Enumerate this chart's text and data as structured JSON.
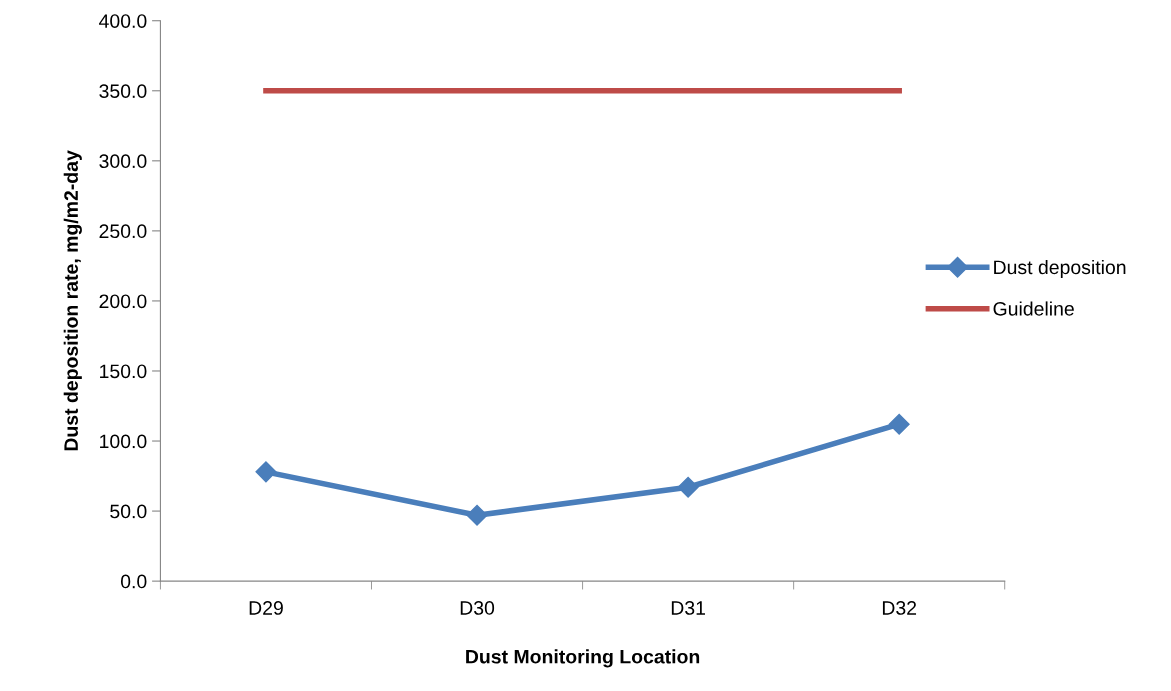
{
  "chart_data": {
    "type": "line",
    "xlabel": "Dust Monitoring Location",
    "ylabel": "Dust deposition rate, mg/m2-day",
    "categories": [
      "D29",
      "D30",
      "D31",
      "D32"
    ],
    "series": [
      {
        "name": "Dust deposition",
        "color": "#4a7ebb",
        "values": [
          78,
          47,
          67,
          112
        ],
        "marker": "diamond"
      },
      {
        "name": "Guideline",
        "color": "#be4b48",
        "values": [
          350,
          350,
          350,
          350
        ],
        "marker": "none"
      }
    ],
    "ylim": [
      0,
      400
    ],
    "yticks": [
      {
        "value": 0,
        "label": "0.0"
      },
      {
        "value": 50,
        "label": "50.0"
      },
      {
        "value": 100,
        "label": "100.0"
      },
      {
        "value": 150,
        "label": "150.0"
      },
      {
        "value": 200,
        "label": "200.0"
      },
      {
        "value": 250,
        "label": "250.0"
      },
      {
        "value": 300,
        "label": "300.0"
      },
      {
        "value": 350,
        "label": "350.0"
      },
      {
        "value": 400,
        "label": "400.0"
      }
    ],
    "grid": false,
    "legend": "right"
  }
}
